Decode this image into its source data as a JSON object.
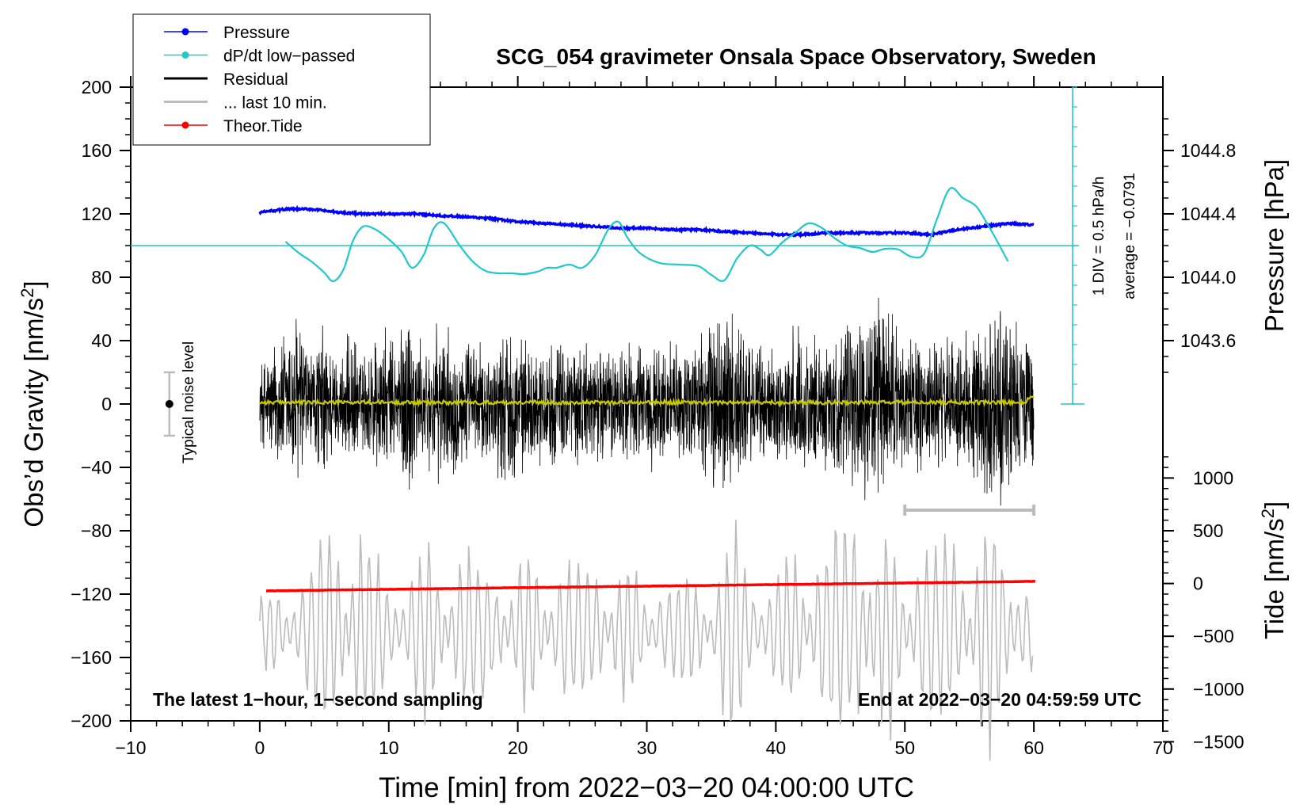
{
  "chart_data": {
    "type": "line",
    "title": "SCG_054 gravimeter Onsala Space Observatory, Sweden",
    "xlabel": "Time [min] from 2022−03−20 04:00:00 UTC",
    "ylabel_main": "Obs’d Gravity [nm/s",
    "ylabel_sup": "2",
    "ylabel_close": "]",
    "ylabel_pressure": "Pressure [hPa]",
    "ylabel_tide_main": "Tide [nm/s",
    "ylabel_tide_sup": "2",
    "ylabel_tide_close": "]",
    "xlim": [
      -10,
      70
    ],
    "ylim": [
      -200,
      200
    ],
    "pressure_range": [
      1043.2,
      1045.2
    ],
    "tide_range": [
      -1500,
      1500
    ],
    "x_ticks": [
      "−10",
      "0",
      "10",
      "20",
      "30",
      "40",
      "50",
      "60",
      "70"
    ],
    "x_tick_values": [
      -10,
      0,
      10,
      20,
      30,
      40,
      50,
      60,
      70
    ],
    "y_ticks": [
      "200",
      "160",
      "120",
      "80",
      "40",
      "0",
      "−40",
      "−80",
      "−120",
      "−160",
      "−200"
    ],
    "y_tick_values": [
      200,
      160,
      120,
      80,
      40,
      0,
      -40,
      -80,
      -120,
      -160,
      -200
    ],
    "pressure_ticks": [
      "1044.8",
      "1044.4",
      "1044.0",
      "1043.6"
    ],
    "pressure_tick_values": [
      1044.8,
      1044.4,
      1044.0,
      1043.6
    ],
    "tide_ticks": [
      "1000",
      "500",
      "0",
      "−500",
      "−1000",
      "−1500"
    ],
    "tide_tick_values": [
      1000,
      500,
      0,
      -500,
      -1000,
      -1500
    ],
    "legend": [
      {
        "label": "Pressure",
        "color": "#0000ff",
        "marker": true
      },
      {
        "label": "dP/dt low−passed",
        "color": "#20c8c8",
        "marker": true
      },
      {
        "label": "Residual",
        "color": "#000000",
        "marker": false
      },
      {
        "label": "... last 10 min.",
        "color": "#bbbbbb",
        "marker": false
      },
      {
        "label": "Theor.Tide",
        "color": "#ff0000",
        "marker": true
      }
    ],
    "series": [
      {
        "name": "Pressure",
        "axis": "pressure",
        "color": "#0000ff",
        "x": [
          0,
          2,
          4,
          6,
          8,
          10,
          12,
          14,
          16,
          18,
          20,
          22,
          24,
          26,
          28,
          30,
          32,
          34,
          36,
          38,
          40,
          42,
          44,
          46,
          48,
          50,
          52,
          54,
          56,
          58,
          60
        ],
        "values": [
          1044.41,
          1044.43,
          1044.43,
          1044.41,
          1044.4,
          1044.4,
          1044.4,
          1044.39,
          1044.38,
          1044.37,
          1044.35,
          1044.34,
          1044.33,
          1044.32,
          1044.31,
          1044.31,
          1044.3,
          1044.3,
          1044.29,
          1044.28,
          1044.27,
          1044.27,
          1044.28,
          1044.28,
          1044.28,
          1044.28,
          1044.27,
          1044.3,
          1044.32,
          1044.34,
          1044.33
        ]
      },
      {
        "name": "dP/dt low−passed",
        "axis": "dpdt_hpa_per_h",
        "color": "#20c8c8",
        "x": [
          2,
          3,
          4,
          5,
          5.7,
          6.5,
          7.2,
          8,
          9,
          10,
          11,
          11.8,
          12.7,
          13.5,
          14.3,
          15.5,
          16.5,
          17.5,
          18.5,
          19.5,
          20.5,
          21.5,
          22.3,
          23,
          24,
          25,
          26,
          27,
          27.8,
          28.5,
          29.5,
          31,
          32.5,
          34,
          35,
          36,
          37,
          38,
          38.8,
          39.5,
          40.5,
          41.5,
          42.5,
          43.5,
          44.5,
          45.5,
          46.5,
          47.5,
          48.5,
          49.5,
          50.5,
          51.5,
          52.5,
          53.5,
          54.5,
          55.5,
          56.3,
          57,
          58
        ],
        "values": [
          0.05,
          -0.09,
          -0.2,
          -0.34,
          -0.45,
          -0.3,
          0.05,
          0.24,
          0.2,
          0.08,
          -0.08,
          -0.28,
          -0.12,
          0.22,
          0.28,
          0.0,
          -0.2,
          -0.32,
          -0.35,
          -0.35,
          -0.36,
          -0.33,
          -0.28,
          -0.28,
          -0.24,
          -0.28,
          -0.12,
          0.2,
          0.3,
          0.1,
          -0.1,
          -0.22,
          -0.24,
          -0.26,
          -0.37,
          -0.44,
          -0.16,
          0.0,
          -0.05,
          -0.12,
          0.04,
          0.16,
          0.28,
          0.23,
          0.1,
          0.0,
          -0.03,
          -0.08,
          -0.04,
          -0.05,
          -0.14,
          -0.1,
          0.34,
          0.72,
          0.6,
          0.5,
          0.3,
          0.1,
          -0.2
        ]
      },
      {
        "name": "Residual",
        "axis": "gravity",
        "color": "#000000",
        "typical_range": [
          -75,
          80
        ]
      },
      {
        "name": "Residual (low-passed)",
        "axis": "gravity",
        "color": "#c8c800",
        "typical_range": [
          -2,
          4
        ]
      },
      {
        "name": "... last 10 min.",
        "axis": "tide",
        "color": "#bbbbbb",
        "x": [
          0,
          5,
          10,
          15,
          20,
          25,
          30,
          35,
          37,
          40,
          45,
          47,
          48,
          50,
          55,
          57.5,
          60
        ],
        "values": [
          -300,
          -900,
          -800,
          -700,
          -700,
          -600,
          -650,
          -450,
          -1000,
          -700,
          -900,
          -1450,
          -900,
          -800,
          -800,
          -1200,
          -600
        ]
      },
      {
        "name": "Theor.Tide",
        "axis": "tide",
        "color": "#ff0000",
        "x": [
          0.5,
          10,
          20,
          30,
          40,
          50,
          60
        ],
        "values": [
          -70,
          -55,
          -40,
          -25,
          -10,
          5,
          20
        ]
      }
    ],
    "dpdt_scale_label": "1 DIV = 0.5 hPa/h",
    "dpdt_average_label": "average = −0.0791",
    "noise_label": "Typical noise level",
    "noise_range": [
      -20,
      20
    ],
    "last10_bar_range": [
      50,
      60
    ],
    "annotation_left": "The latest 1−hour, 1−second sampling",
    "annotation_right": "End at 2022−03−20 04:59:59 UTC"
  }
}
